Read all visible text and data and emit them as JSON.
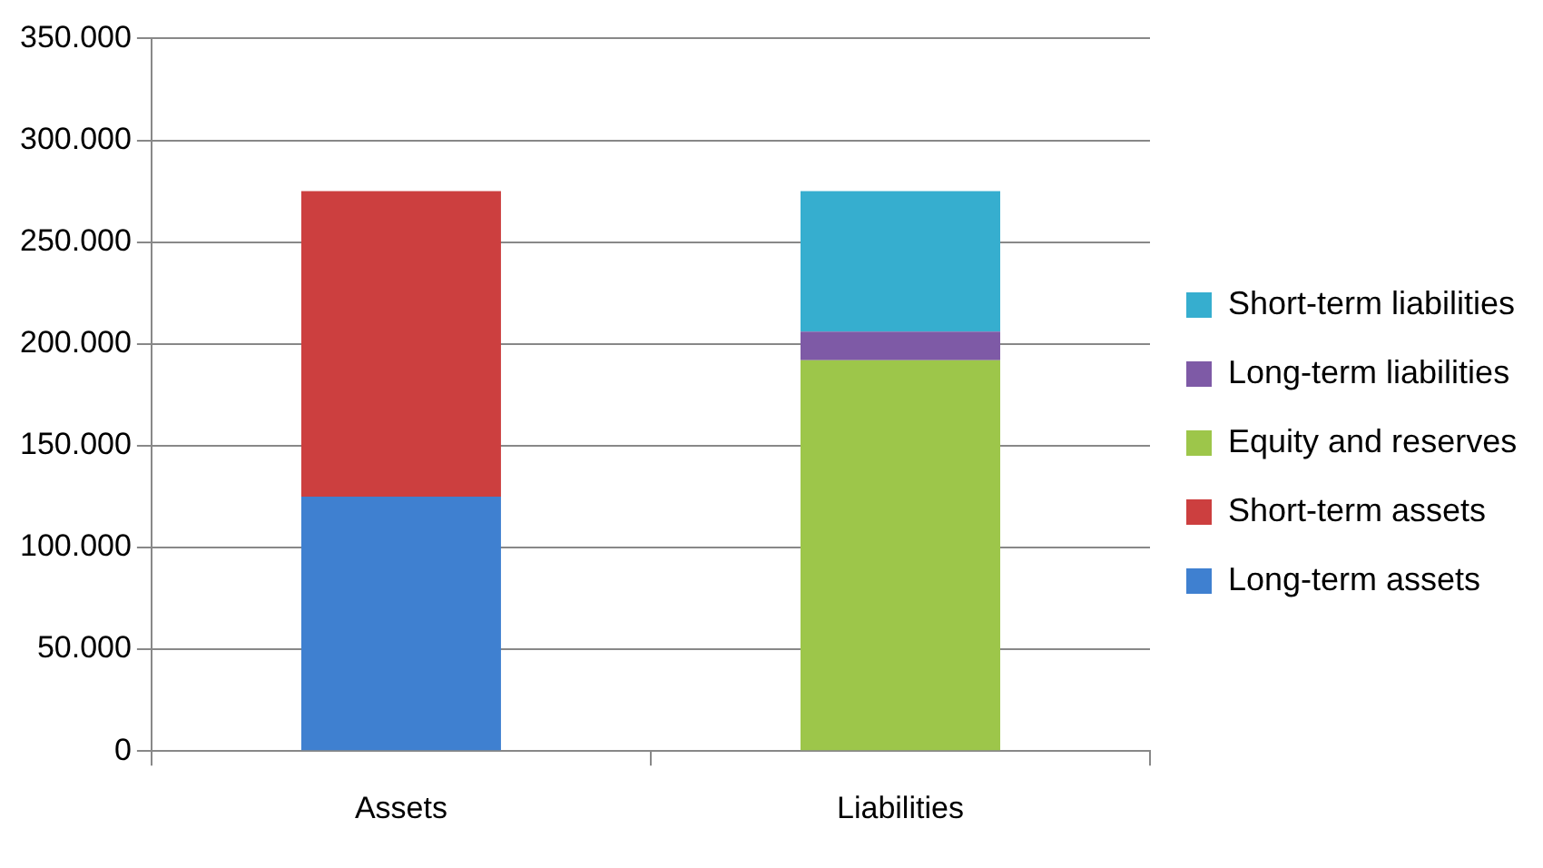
{
  "chart_data": {
    "type": "bar",
    "stacked": true,
    "categories": [
      "Assets",
      "Liabilities"
    ],
    "series": [
      {
        "name": "Long-term assets",
        "color": "#3f80d0",
        "values": [
          125000,
          null
        ]
      },
      {
        "name": "Short-term assets",
        "color": "#cc3f3f",
        "values": [
          150000,
          null
        ]
      },
      {
        "name": "Equity and reserves",
        "color": "#9dc64a",
        "values": [
          null,
          192000
        ]
      },
      {
        "name": "Long-term liabilities",
        "color": "#7e5aa6",
        "values": [
          null,
          14000
        ]
      },
      {
        "name": "Short-term liabilities",
        "color": "#36aecf",
        "values": [
          null,
          69000
        ]
      }
    ],
    "ylim": [
      0,
      350000
    ],
    "yticks": [
      {
        "value": 0,
        "label": "0"
      },
      {
        "value": 50000,
        "label": "50.000"
      },
      {
        "value": 100000,
        "label": "100.000"
      },
      {
        "value": 150000,
        "label": "150.000"
      },
      {
        "value": 200000,
        "label": "200.000"
      },
      {
        "value": 250000,
        "label": "250.000"
      },
      {
        "value": 300000,
        "label": "300.000"
      },
      {
        "value": 350000,
        "label": "350.000"
      }
    ],
    "grid": "y",
    "legend": "right"
  }
}
